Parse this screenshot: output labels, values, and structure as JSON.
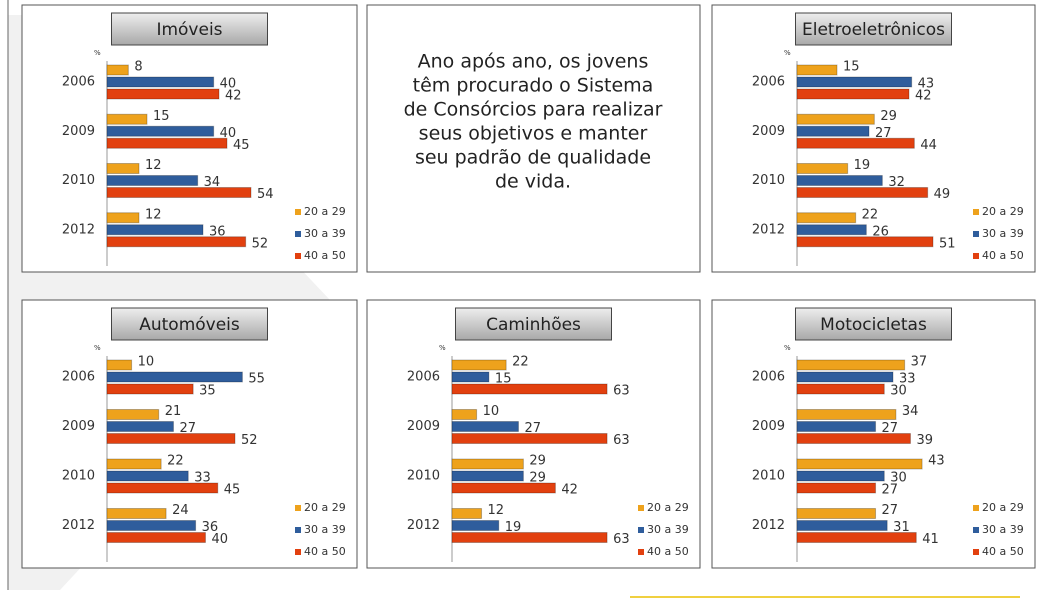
{
  "text": {
    "lines": [
      "Ano após ano, os jovens",
      "têm procurado o Sistema",
      "de Consórcios para realizar",
      "seus objetivos e manter",
      "seu padrão de qualidade",
      "de vida."
    ]
  },
  "chart_data": [
    {
      "type": "hbar",
      "title": "Imóveis",
      "unit_label": "%",
      "categories": [
        "2006",
        "2009",
        "2010",
        "2012"
      ],
      "xlim": [
        0,
        60
      ],
      "series": [
        {
          "name": "20 a 29",
          "color": "#eea21c",
          "values": [
            8,
            15,
            12,
            12
          ]
        },
        {
          "name": "30 a 39",
          "color": "#2f5d9c",
          "values": [
            40,
            40,
            34,
            36
          ]
        },
        {
          "name": "40 a 50",
          "color": "#e2400f",
          "values": [
            42,
            45,
            54,
            52
          ]
        }
      ]
    },
    {
      "type": "hbar",
      "title": "Eletroeletrônicos",
      "unit_label": "%",
      "categories": [
        "2006",
        "2009",
        "2010",
        "2012"
      ],
      "xlim": [
        0,
        60
      ],
      "series": [
        {
          "name": "20 a 29",
          "color": "#eea21c",
          "values": [
            15,
            29,
            19,
            22
          ]
        },
        {
          "name": "30 a 39",
          "color": "#2f5d9c",
          "values": [
            43,
            27,
            32,
            26
          ]
        },
        {
          "name": "40 a 50",
          "color": "#e2400f",
          "values": [
            42,
            44,
            49,
            51
          ]
        }
      ]
    },
    {
      "type": "hbar",
      "title": "Automóveis",
      "unit_label": "%",
      "categories": [
        "2006",
        "2009",
        "2010",
        "2012"
      ],
      "xlim": [
        0,
        65
      ],
      "series": [
        {
          "name": "20 a 29",
          "color": "#eea21c",
          "values": [
            10,
            21,
            22,
            24
          ]
        },
        {
          "name": "30 a 39",
          "color": "#2f5d9c",
          "values": [
            55,
            27,
            33,
            36
          ]
        },
        {
          "name": "40 a 50",
          "color": "#e2400f",
          "values": [
            35,
            52,
            45,
            40
          ]
        }
      ]
    },
    {
      "type": "hbar",
      "title": "Caminhões",
      "unit_label": "%",
      "categories": [
        "2006",
        "2009",
        "2010",
        "2012"
      ],
      "xlim": [
        0,
        65
      ],
      "series": [
        {
          "name": "20 a 29",
          "color": "#eea21c",
          "values": [
            22,
            10,
            29,
            12
          ]
        },
        {
          "name": "30 a 39",
          "color": "#2f5d9c",
          "values": [
            15,
            27,
            29,
            19
          ]
        },
        {
          "name": "40 a 50",
          "color": "#e2400f",
          "values": [
            63,
            63,
            42,
            63
          ]
        }
      ]
    },
    {
      "type": "hbar",
      "title": "Motocicletas",
      "unit_label": "%",
      "categories": [
        "2006",
        "2009",
        "2010",
        "2012"
      ],
      "xlim": [
        0,
        55
      ],
      "series": [
        {
          "name": "20 a 29",
          "color": "#eea21c",
          "values": [
            37,
            34,
            43,
            27
          ]
        },
        {
          "name": "30 a 39",
          "color": "#2f5d9c",
          "values": [
            33,
            27,
            30,
            31
          ]
        },
        {
          "name": "40 a 50",
          "color": "#e2400f",
          "values": [
            30,
            39,
            27,
            41
          ]
        }
      ]
    }
  ]
}
